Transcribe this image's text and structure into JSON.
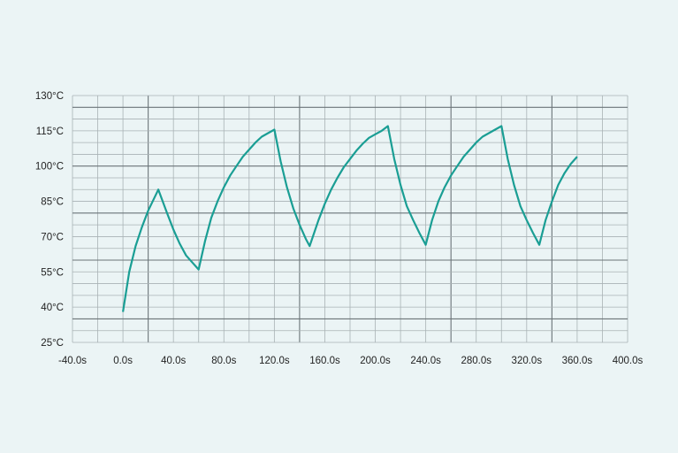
{
  "chart_data": {
    "type": "line",
    "title": "",
    "xlabel": "",
    "ylabel": "",
    "xlim": [
      -40,
      400
    ],
    "ylim": [
      25,
      130
    ],
    "x_ticks": [
      -40,
      0,
      40,
      80,
      120,
      160,
      200,
      240,
      280,
      320,
      360,
      400
    ],
    "x_tick_labels": [
      "-40.0s",
      "0.0s",
      "40.0s",
      "80.0s",
      "120.0s",
      "160.0s",
      "200.0s",
      "240.0s",
      "280.0s",
      "320.0s",
      "360.0s",
      "400.0s"
    ],
    "y_ticks": [
      25,
      40,
      55,
      70,
      85,
      100,
      115,
      130
    ],
    "y_tick_labels": [
      "25°C",
      "40°C",
      "55°C",
      "70°C",
      "85°C",
      "100°C",
      "115°C",
      "130°C"
    ],
    "grid": true,
    "line_color": "#1a9e94",
    "series": [
      {
        "x": [
          0,
          5,
          10,
          15,
          20,
          28,
          35,
          40,
          45,
          50,
          55,
          60,
          65,
          70,
          75,
          80,
          85,
          90,
          95,
          100,
          105,
          110,
          115,
          120,
          125,
          130,
          135,
          140,
          145,
          148,
          155,
          160,
          165,
          170,
          175,
          180,
          185,
          190,
          195,
          200,
          205,
          210,
          215,
          220,
          225,
          230,
          235,
          240,
          245,
          250,
          255,
          260,
          265,
          270,
          275,
          280,
          285,
          290,
          295,
          300,
          305,
          310,
          315,
          320,
          325,
          330,
          335,
          340,
          345,
          350,
          355,
          360
        ],
        "y": [
          38,
          55,
          66,
          74,
          81,
          90,
          80,
          73,
          67,
          62,
          59,
          56,
          68,
          78,
          85,
          91,
          96,
          100,
          104,
          107,
          110,
          112.5,
          114,
          115.5,
          102,
          91,
          82,
          75,
          69,
          66,
          77,
          84,
          90,
          95,
          99.5,
          103,
          106.5,
          109.5,
          112,
          113.5,
          115,
          117,
          103,
          92,
          83,
          77,
          71.5,
          66.5,
          77,
          85,
          91,
          96,
          100,
          104,
          107,
          110,
          112.5,
          114,
          115.5,
          117,
          103,
          92,
          83,
          77,
          71.5,
          66.5,
          77,
          85,
          92,
          97,
          101,
          104
        ]
      }
    ]
  }
}
